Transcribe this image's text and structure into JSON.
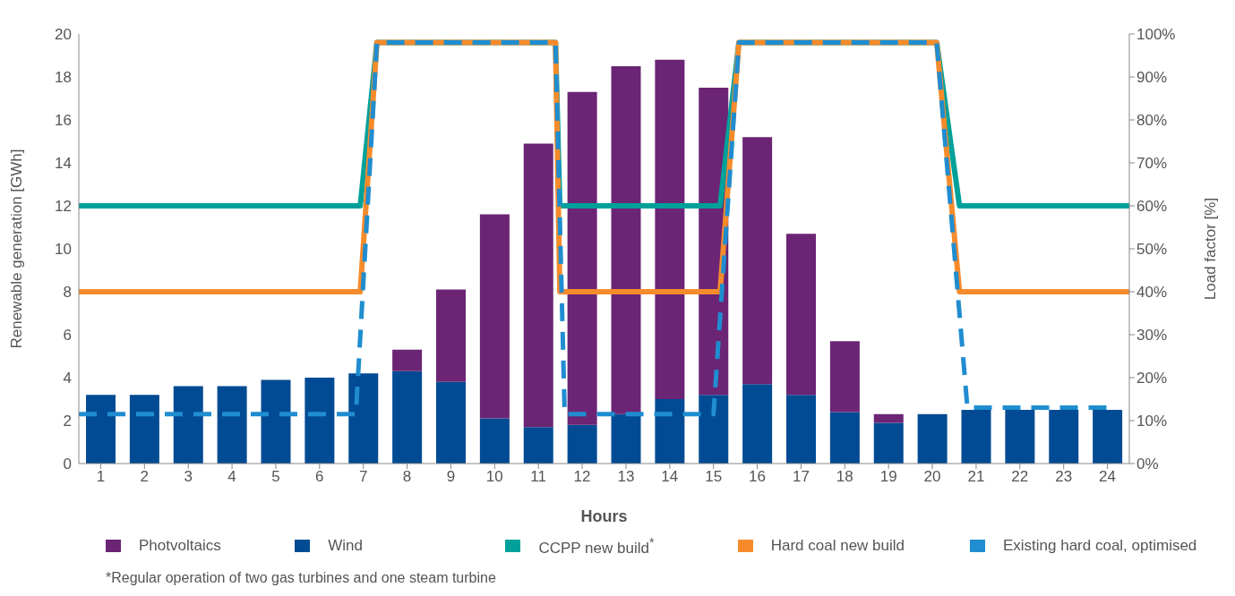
{
  "chart_data": {
    "type": "bar",
    "stacked": true,
    "xlabel": "Hours",
    "ylabel": "Renewable generation [GWh]",
    "y2label": "Load factor [%]",
    "x": [
      1,
      2,
      3,
      4,
      5,
      6,
      7,
      8,
      9,
      10,
      11,
      12,
      13,
      14,
      15,
      16,
      17,
      18,
      19,
      20,
      21,
      22,
      23,
      24
    ],
    "xlim": [
      0.5,
      24.5
    ],
    "xticks": [
      1,
      2,
      3,
      4,
      5,
      6,
      7,
      8,
      9,
      10,
      11,
      12,
      13,
      14,
      15,
      16,
      17,
      18,
      19,
      20,
      21,
      22,
      23,
      24
    ],
    "ylim": [
      0,
      20
    ],
    "yticks": [
      0,
      2,
      4,
      6,
      8,
      10,
      12,
      14,
      16,
      18,
      20
    ],
    "y2lim": [
      0,
      100
    ],
    "y2ticks": [
      {
        "value": 0,
        "label": "0%"
      },
      {
        "value": 10,
        "label": "10%"
      },
      {
        "value": 20,
        "label": "20%"
      },
      {
        "value": 30,
        "label": "30%"
      },
      {
        "value": 40,
        "label": "40%"
      },
      {
        "value": 50,
        "label": "50%"
      },
      {
        "value": 60,
        "label": "60%"
      },
      {
        "value": 70,
        "label": "70%"
      },
      {
        "value": 80,
        "label": "80%"
      },
      {
        "value": 90,
        "label": "90%"
      },
      {
        "value": 100,
        "label": "100%"
      }
    ],
    "series": [
      {
        "name": "Wind",
        "color": "#004b93",
        "values": [
          3.2,
          3.2,
          3.6,
          3.6,
          3.9,
          4.0,
          4.2,
          4.3,
          3.8,
          2.1,
          1.7,
          1.8,
          2.3,
          3.0,
          3.2,
          3.7,
          3.2,
          2.4,
          1.9,
          2.3,
          2.5,
          2.5,
          2.5,
          2.5
        ]
      },
      {
        "name": "Photvoltaics",
        "color": "#6b2574",
        "values": [
          null,
          null,
          null,
          null,
          null,
          null,
          null,
          1.0,
          4.3,
          9.5,
          13.2,
          15.5,
          16.2,
          15.8,
          14.3,
          11.5,
          7.5,
          3.3,
          0.4,
          null,
          null,
          null,
          null,
          null
        ]
      },
      {
        "name": "CCPP new build$^{*}$",
        "type": "line",
        "axis": "y2",
        "color": "#00a19a",
        "line_style": "solid",
        "x": [
          0.5,
          6.93,
          7.31,
          11.39,
          11.49,
          15.15,
          15.58,
          20.1,
          20.62,
          24.5
        ],
        "values": [
          60,
          60,
          98,
          98,
          60,
          60,
          98,
          98,
          60,
          60
        ]
      },
      {
        "name": "Hard coal new build",
        "type": "line",
        "axis": "y2",
        "color": "#f68b2c",
        "line_style": "solid",
        "x": [
          0.5,
          6.93,
          7.31,
          11.39,
          11.49,
          15.15,
          15.58,
          20.1,
          20.62,
          24.5
        ],
        "values": [
          40,
          40,
          98,
          98,
          40,
          40,
          98,
          98,
          40,
          40
        ]
      },
      {
        "name": "Existing hard coal, optimised",
        "type": "line",
        "axis": "y2",
        "color": "#1f8dd0",
        "line_style": "dashed",
        "x": [
          0.5,
          6.83,
          7.31,
          11.39,
          11.6,
          15.0,
          15.58,
          20.1,
          20.8,
          24.05
        ],
        "values": [
          11.5,
          11.5,
          98,
          98,
          11.5,
          11.5,
          98,
          98,
          13,
          13
        ]
      }
    ],
    "legend": "bottom",
    "grid": false,
    "marker": "none",
    "annotations": [
      "*Regular operation of two gas turbines and one steam turbine"
    ]
  }
}
